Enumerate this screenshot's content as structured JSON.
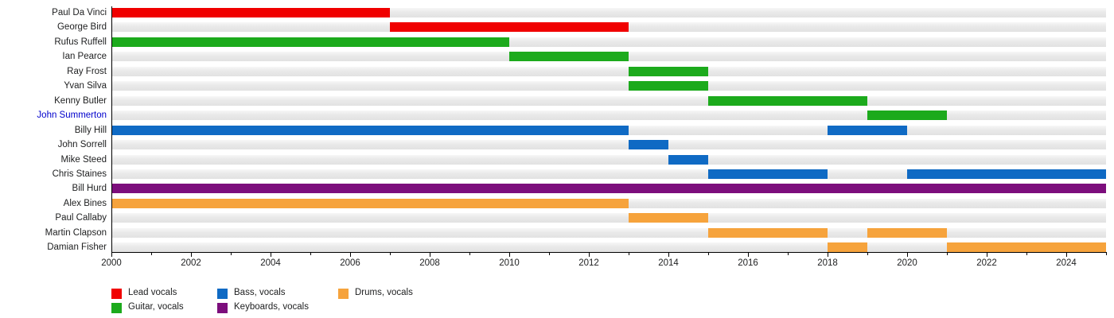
{
  "chart_data": {
    "type": "timeline",
    "description": "Band members timeline (gantt-style chart of member tenures by instrument role)",
    "x_axis": {
      "start_year": 2000,
      "end_year": 2025,
      "major_tick_years": [
        2000,
        2002,
        2004,
        2006,
        2008,
        2010,
        2012,
        2014,
        2016,
        2018,
        2020,
        2022,
        2024
      ],
      "minor_tick_interval": 1
    },
    "colors": {
      "lead": "#f00000",
      "guitar": "#1caa1c",
      "bass": "#0f6ac4",
      "keyboards": "#7c0e7c",
      "drums": "#f6a33c",
      "link_text": "#0000cc",
      "text": "#202122",
      "axis": "#000000",
      "track": "#e7e7e7"
    },
    "legend": [
      {
        "label": "Lead vocals",
        "role": "lead"
      },
      {
        "label": "Guitar, vocals",
        "role": "guitar"
      },
      {
        "label": "Bass, vocals",
        "role": "bass"
      },
      {
        "label": "Keyboards, vocals",
        "role": "keyboards"
      },
      {
        "label": "Drums, vocals",
        "role": "drums"
      }
    ],
    "members": [
      {
        "name": "Paul Da Vinci",
        "role": "lead",
        "is_link": false,
        "periods": [
          {
            "start": 2000,
            "end": 2007
          }
        ]
      },
      {
        "name": "George Bird",
        "role": "lead",
        "is_link": false,
        "periods": [
          {
            "start": 2007,
            "end": 2013
          }
        ]
      },
      {
        "name": "Rufus Ruffell",
        "role": "guitar",
        "is_link": false,
        "periods": [
          {
            "start": 2000,
            "end": 2010
          }
        ]
      },
      {
        "name": "Ian Pearce",
        "role": "guitar",
        "is_link": false,
        "periods": [
          {
            "start": 2010,
            "end": 2013
          }
        ]
      },
      {
        "name": "Ray Frost",
        "role": "guitar",
        "is_link": false,
        "periods": [
          {
            "start": 2013,
            "end": 2015
          }
        ]
      },
      {
        "name": "Yvan Silva",
        "role": "guitar",
        "is_link": false,
        "periods": [
          {
            "start": 2013,
            "end": 2015
          }
        ]
      },
      {
        "name": "Kenny Butler",
        "role": "guitar",
        "is_link": false,
        "periods": [
          {
            "start": 2015,
            "end": 2019
          }
        ]
      },
      {
        "name": "John Summerton",
        "role": "guitar",
        "is_link": true,
        "periods": [
          {
            "start": 2019,
            "end": 2021
          }
        ]
      },
      {
        "name": "Billy Hill",
        "role": "bass",
        "is_link": false,
        "periods": [
          {
            "start": 2000,
            "end": 2013
          },
          {
            "start": 2018,
            "end": 2020
          }
        ]
      },
      {
        "name": "John Sorrell",
        "role": "bass",
        "is_link": false,
        "periods": [
          {
            "start": 2013,
            "end": 2014
          }
        ]
      },
      {
        "name": "Mike Steed",
        "role": "bass",
        "is_link": false,
        "periods": [
          {
            "start": 2014,
            "end": 2015
          }
        ]
      },
      {
        "name": "Chris Staines",
        "role": "bass",
        "is_link": false,
        "periods": [
          {
            "start": 2015,
            "end": 2018
          },
          {
            "start": 2020,
            "end": 2025
          }
        ]
      },
      {
        "name": "Bill Hurd",
        "role": "keyboards",
        "is_link": false,
        "periods": [
          {
            "start": 2000,
            "end": 2025
          }
        ]
      },
      {
        "name": "Alex Bines",
        "role": "drums",
        "is_link": false,
        "periods": [
          {
            "start": 2000,
            "end": 2013
          }
        ]
      },
      {
        "name": "Paul Callaby",
        "role": "drums",
        "is_link": false,
        "periods": [
          {
            "start": 2013,
            "end": 2015
          }
        ]
      },
      {
        "name": "Martin Clapson",
        "role": "drums",
        "is_link": false,
        "periods": [
          {
            "start": 2015,
            "end": 2018
          },
          {
            "start": 2019,
            "end": 2021
          }
        ]
      },
      {
        "name": "Damian Fisher",
        "role": "drums",
        "is_link": false,
        "periods": [
          {
            "start": 2018,
            "end": 2019
          },
          {
            "start": 2021,
            "end": 2025
          }
        ]
      }
    ]
  }
}
